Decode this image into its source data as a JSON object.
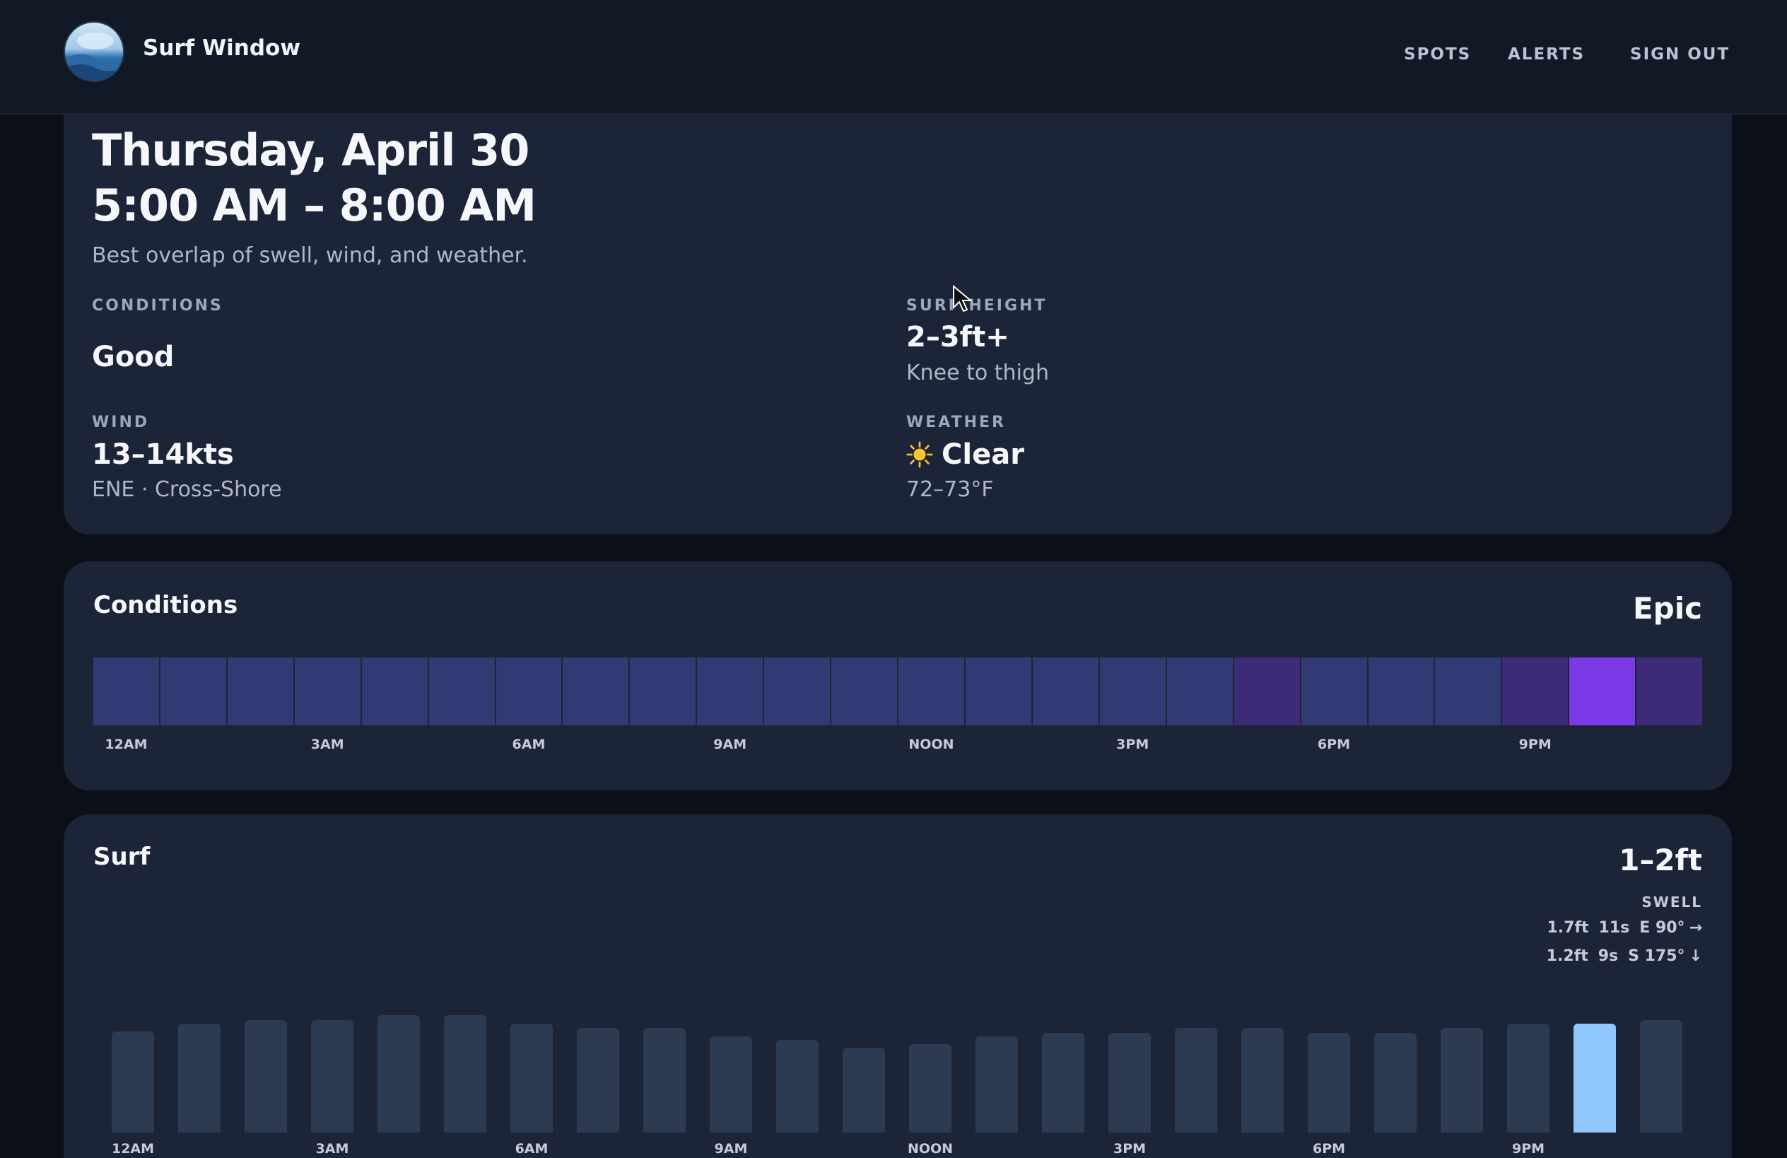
{
  "header": {
    "brand": "Surf Window",
    "nav": [
      "SPOTS",
      "ALERTS",
      "SIGN OUT"
    ]
  },
  "summary": {
    "date": "Thursday, April 30",
    "time_range": "5:00 AM – 8:00 AM",
    "subtitle": "Best overlap of swell, wind, and weather.",
    "conditions": {
      "label": "CONDITIONS",
      "value": "Good"
    },
    "surf_height": {
      "label": "SURF HEIGHT",
      "value": "2–3ft+",
      "sub": "Knee to thigh"
    },
    "wind": {
      "label": "WIND",
      "value": "13–14kts",
      "sub": "ENE · Cross-Shore"
    },
    "weather": {
      "label": "WEATHER",
      "value": "Clear",
      "icon": "sun-icon",
      "sub": "72–73°F"
    }
  },
  "conditions_card": {
    "title": "Conditions",
    "rating": "Epic",
    "hour_labels": [
      "12AM",
      "3AM",
      "6AM",
      "9AM",
      "NOON",
      "3PM",
      "6PM",
      "9PM"
    ],
    "hourly_ratings": [
      "good",
      "good",
      "good",
      "good",
      "good",
      "good",
      "good",
      "good",
      "good",
      "good",
      "good",
      "good",
      "good",
      "good",
      "good",
      "good",
      "good",
      "great",
      "good",
      "good",
      "good",
      "great",
      "epic",
      "great"
    ],
    "colors": {
      "good": "#313a73",
      "great": "#3e2b78",
      "epic": "#7b3ae6"
    }
  },
  "surf_card": {
    "title": "Surf",
    "range": "1–2ft",
    "swell_label": "SWELL",
    "swells": [
      {
        "height": "1.7ft",
        "period": "11s",
        "direction": "E 90°",
        "arrow": "→"
      },
      {
        "height": "1.2ft",
        "period": "9s",
        "direction": "S 175°",
        "arrow": "↓"
      }
    ],
    "hour_labels": [
      "12AM",
      "3AM",
      "6AM",
      "9AM",
      "NOON",
      "3PM",
      "6PM",
      "9PM"
    ],
    "hourly_relative_height": [
      0.86,
      0.93,
      0.96,
      0.96,
      1.0,
      1.0,
      0.93,
      0.89,
      0.89,
      0.82,
      0.79,
      0.72,
      0.75,
      0.82,
      0.85,
      0.85,
      0.89,
      0.89,
      0.85,
      0.85,
      0.89,
      0.93,
      0.93,
      0.96
    ],
    "highlight_index": 22,
    "colors": {
      "bar": "#2c3a52",
      "highlight": "#90c8fb"
    }
  }
}
